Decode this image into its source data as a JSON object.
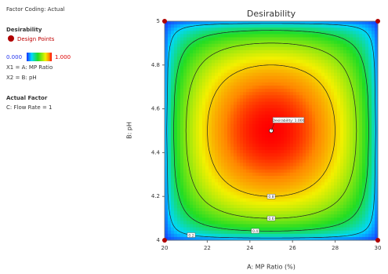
{
  "chart_data": {
    "type": "contour",
    "title": "Desirability",
    "factor_coding": "Factor Coding: Actual",
    "legend": {
      "title": "Desirability",
      "points_label": "Design Points",
      "colorbar": [
        {
          "value": 0,
          "label": "0.000"
        },
        {
          "value": 1,
          "label": "1.000"
        }
      ],
      "x1": "X1 = A: MP Ratio",
      "x2": "X2 = B: pH"
    },
    "actual_factor": {
      "title": "Actual Factor",
      "text": "C: Flow Rate = 1"
    },
    "xlabel": "A: MP Ratio (%)",
    "ylabel": "B: pH",
    "xlim": [
      20,
      30
    ],
    "ylim": [
      4,
      5
    ],
    "xticks": [
      20,
      22,
      24,
      26,
      28,
      30
    ],
    "yticks": [
      4,
      4.2,
      4.4,
      4.6,
      4.8,
      5
    ],
    "levels": [
      0.2,
      0.4,
      0.6,
      0.8
    ],
    "design_points": {
      "x": [
        20,
        20,
        30,
        30
      ],
      "y": [
        4,
        5,
        4,
        5
      ],
      "color": "#b00000"
    },
    "optimum": {
      "x": 25,
      "y": 4.5,
      "label": "Desirability: 1.000"
    }
  }
}
